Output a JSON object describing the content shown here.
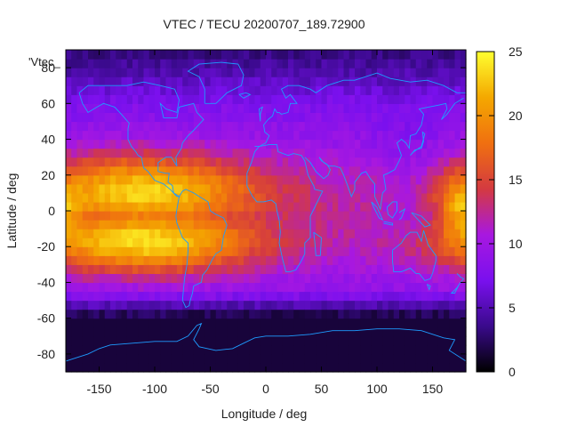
{
  "chart_data": {
    "type": "heatmap",
    "title": "VTEC / TECU 20200707_189.72900",
    "xlabel": "Longitude / deg",
    "ylabel": "Latitude / deg",
    "series_label": "'Vtec_",
    "xlim": [
      -180,
      180
    ],
    "ylim": [
      -90,
      90
    ],
    "x_ticks": [
      -150,
      -100,
      -50,
      0,
      50,
      100,
      150
    ],
    "y_ticks": [
      -80,
      -60,
      -40,
      -20,
      0,
      20,
      40,
      60,
      80
    ],
    "colorbar": {
      "range": [
        0,
        25
      ],
      "ticks": [
        0,
        5,
        10,
        15,
        20,
        25
      ],
      "colors": [
        "#000000",
        "#3a0a8c",
        "#7a10ee",
        "#a818e0",
        "#d43a40",
        "#f07010",
        "#f4a800",
        "#ffff30"
      ]
    },
    "grid_step_deg": 5,
    "features": {
      "day_side_peak_longitude": -110,
      "equatorial_crest_latitudes": [
        -18,
        12
      ],
      "peak_value": 24,
      "secondary_peak_longitude": 175,
      "polar_minimum_value": 1.5
    },
    "overlay": "coastlines"
  }
}
